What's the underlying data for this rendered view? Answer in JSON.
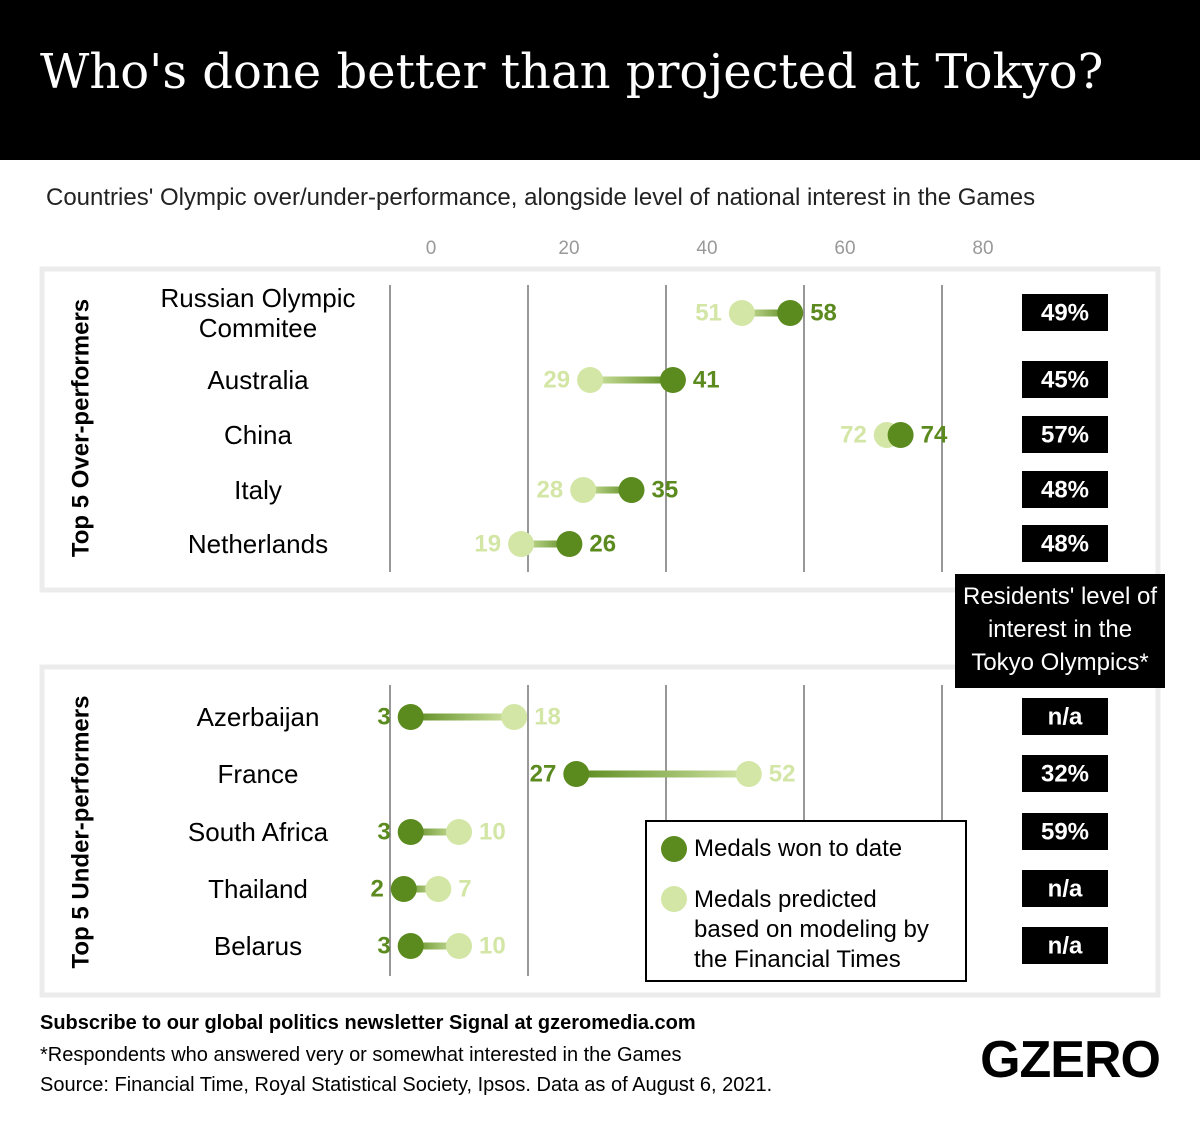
{
  "chart_data": {
    "type": "dumbbell",
    "title": "Who's done better than projected at Tokyo?",
    "subtitle": "Countries' Olympic over/under-performance, alongside level of national interest in the Games",
    "xlim": [
      0,
      80
    ],
    "xticks": [
      0,
      20,
      40,
      60,
      80
    ],
    "grid": true,
    "groups": [
      {
        "name": "Top 5 Over-performers",
        "categories": [
          "Russian Olympic Commitee",
          "Australia",
          "China",
          "Italy",
          "Netherlands"
        ]
      },
      {
        "name": "Top 5 Under-performers",
        "categories": [
          "Azerbaijan",
          "France",
          "South Africa",
          "Thailand",
          "Belarus"
        ]
      }
    ],
    "series": [
      {
        "name": "Medals won to date",
        "color": "#5b8a1e",
        "values": [
          58,
          41,
          74,
          35,
          26,
          3,
          27,
          3,
          2,
          3
        ]
      },
      {
        "name": "Medals predicted based on modeling by the Financial Times",
        "color": "#d3e6a6",
        "values": [
          51,
          29,
          72,
          28,
          19,
          18,
          52,
          10,
          7,
          10
        ]
      }
    ],
    "interest": {
      "title": "Residents' level of interest in the Tokyo Olympics*",
      "values": [
        49,
        45,
        57,
        48,
        48,
        null,
        32,
        59,
        null,
        null
      ],
      "value_labels": [
        "49%",
        "45%",
        "57%",
        "48%",
        "48%",
        "n/a",
        "32%",
        "59%",
        "n/a",
        "n/a"
      ]
    },
    "newsletter": "Subscribe to our global politics newsletter Signal at gzeromedia.com",
    "footnote": "*Respondents who answered very or somewhat interested in the Games",
    "source": "Source: Financial Time, Royal Statistical Society, Ipsos. Data as of August 6, 2021.",
    "logo": "GZERO"
  }
}
